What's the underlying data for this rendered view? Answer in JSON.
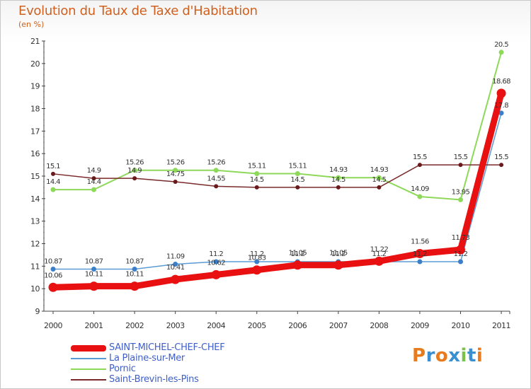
{
  "title": "Evolution du Taux de Taxe d'Habitation",
  "unit_label": "(en %)",
  "brand": {
    "text": "Proxiti",
    "colors": [
      "#e87b1e",
      "#3a8fd0",
      "#e87b1e",
      "#3a8fd0",
      "#7cc24a",
      "#3a8fd0",
      "#e87b1e"
    ]
  },
  "chart_data": {
    "type": "line",
    "x": [
      "2000",
      "2001",
      "2002",
      "2003",
      "2004",
      "2005",
      "2006",
      "2007",
      "2008",
      "2009",
      "2010",
      "2011"
    ],
    "ylim": [
      9,
      21
    ],
    "yticks": [
      "9",
      "10",
      "11",
      "12",
      "13",
      "14",
      "15",
      "16",
      "17",
      "18",
      "19",
      "20",
      "21"
    ],
    "grid": false,
    "legend_position": "bottom-left",
    "series": [
      {
        "name": "SAINT-MICHEL-CHEF-CHEF",
        "color": "#e81010",
        "values": [
          10.06,
          10.11,
          10.11,
          10.41,
          10.62,
          10.83,
          11.05,
          11.05,
          11.22,
          11.56,
          11.73,
          18.68
        ],
        "labels": [
          "10.06",
          "10.11",
          "10.11",
          "10.41",
          "10.62",
          "10.83",
          "11.05",
          "11.05",
          "11.22",
          "11.56",
          "11.73",
          "18.68"
        ]
      },
      {
        "name": "La Plaine-sur-Mer",
        "color": "#5b9bd5",
        "values": [
          10.87,
          10.87,
          10.87,
          11.09,
          11.2,
          11.2,
          11.2,
          11.2,
          11.2,
          11.2,
          11.2,
          17.8
        ],
        "labels": [
          "10.87",
          "10.87",
          "10.87",
          "11.09",
          "11.2",
          "11.2",
          "11.2",
          "11.2",
          "11.2",
          "11.2",
          "11.2",
          "17.8"
        ]
      },
      {
        "name": "Pornic",
        "color": "#8ed85a",
        "values": [
          14.4,
          14.4,
          15.26,
          15.26,
          15.26,
          15.11,
          15.11,
          14.93,
          14.93,
          14.09,
          13.95,
          20.5
        ],
        "labels": [
          "14.4",
          "14.4",
          "15.26",
          "15.26",
          "15.26",
          "15.11",
          "15.11",
          "14.93",
          "14.93",
          "14.09",
          "13.95",
          "20.5"
        ]
      },
      {
        "name": "Saint-Brevin-les-Pins",
        "color": "#7a2a2a",
        "values": [
          15.1,
          14.9,
          14.9,
          14.75,
          14.55,
          14.5,
          14.5,
          14.5,
          14.5,
          15.5,
          15.5,
          15.5
        ],
        "labels": [
          "15.1",
          "14.9",
          "14.9",
          "14.75",
          "14.55",
          "14.5",
          "14.5",
          "14.5",
          "14.5",
          "15.5",
          "15.5",
          "15.5"
        ]
      }
    ]
  }
}
